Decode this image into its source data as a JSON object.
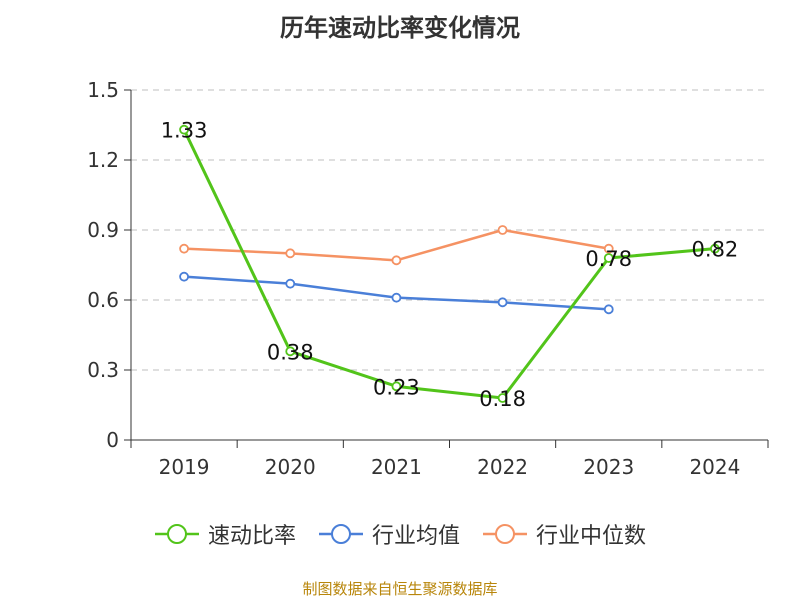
{
  "title": "历年速动比率变化情况",
  "source": "制图数据来自恒生聚源数据库",
  "chart_data": {
    "type": "line",
    "categories": [
      "2019",
      "2020",
      "2021",
      "2022",
      "2023",
      "2024"
    ],
    "ylim": [
      0,
      1.5
    ],
    "yticks": [
      0,
      0.3,
      0.6,
      0.9,
      1.2,
      1.5
    ],
    "ytick_labels": [
      "0",
      "0.3",
      "0.6",
      "0.9",
      "1.2",
      "1.5"
    ],
    "grid": true,
    "legend_position": "bottom",
    "series": [
      {
        "name": "速动比率",
        "color": "#52c41a",
        "values": [
          1.33,
          0.38,
          0.23,
          0.18,
          0.78,
          0.82
        ],
        "labels": [
          "1.33",
          "0.38",
          "0.23",
          "0.18",
          "0.78",
          "0.82"
        ]
      },
      {
        "name": "行业均值",
        "color": "#4a7fd8",
        "values": [
          0.7,
          0.67,
          0.61,
          0.59,
          0.56,
          null
        ]
      },
      {
        "name": "行业中位数",
        "color": "#f59263",
        "values": [
          0.82,
          0.8,
          0.77,
          0.9,
          0.82,
          null
        ]
      }
    ]
  }
}
